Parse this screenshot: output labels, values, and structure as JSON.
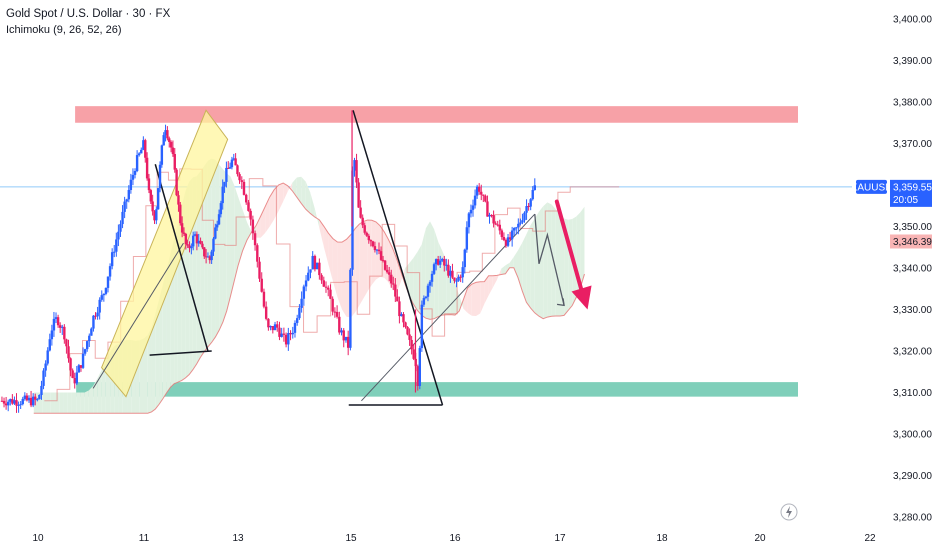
{
  "chart_data": {
    "type": "candlestick",
    "title": "Gold Spot / U.S. Dollar · 30 · FX",
    "indicator": "Ichimoku (9, 26, 52, 26)",
    "symbol": "XAUUSD",
    "y_ticks": [
      "3,400.00",
      "3,390.00",
      "3,380.00",
      "3,370.00",
      "3,360.00",
      "3,350.00",
      "3,340.00",
      "3,330.00",
      "3,320.00",
      "3,310.00",
      "3,300.00",
      "3,290.00",
      "3,280.00"
    ],
    "y_values": [
      3400,
      3390,
      3380,
      3370,
      3360,
      3350,
      3340,
      3330,
      3320,
      3310,
      3300,
      3290,
      3280
    ],
    "ylim": [
      3278,
      3404
    ],
    "x_ticks": [
      "10",
      "11",
      "13",
      "15",
      "16",
      "17",
      "18",
      "20",
      "22"
    ],
    "x_tick_pos": [
      0,
      1,
      2,
      3,
      4,
      5,
      6,
      7,
      8
    ],
    "last_price": {
      "label": "3,359.55",
      "value": 3359.55,
      "countdown": "20:05"
    },
    "kijun_price": {
      "label": "3,346.39",
      "value": 3346.39
    },
    "path": [
      [
        0,
        3308
      ],
      [
        0.06,
        3315
      ],
      [
        0.12,
        3325
      ],
      [
        0.18,
        3328
      ],
      [
        0.25,
        3324
      ],
      [
        0.33,
        3312
      ],
      [
        0.42,
        3318
      ],
      [
        0.52,
        3328
      ],
      [
        0.62,
        3334
      ],
      [
        0.72,
        3345
      ],
      [
        0.82,
        3355
      ],
      [
        0.92,
        3365
      ],
      [
        1.0,
        3370
      ],
      [
        1.06,
        3356
      ],
      [
        1.12,
        3352
      ],
      [
        1.16,
        3362
      ],
      [
        1.22,
        3375
      ],
      [
        1.3,
        3368
      ],
      [
        1.38,
        3352
      ],
      [
        1.46,
        3344
      ],
      [
        1.54,
        3348
      ],
      [
        1.62,
        3344
      ],
      [
        1.7,
        3342
      ],
      [
        1.78,
        3352
      ],
      [
        1.86,
        3362
      ],
      [
        1.94,
        3366
      ],
      [
        2.02,
        3362
      ],
      [
        2.1,
        3354
      ],
      [
        2.18,
        3340
      ],
      [
        2.26,
        3325
      ],
      [
        2.34,
        3326
      ],
      [
        2.42,
        3322
      ],
      [
        2.5,
        3326
      ],
      [
        2.58,
        3336
      ],
      [
        2.66,
        3342
      ],
      [
        2.74,
        3338
      ],
      [
        2.82,
        3332
      ],
      [
        2.9,
        3325
      ],
      [
        2.98,
        3321
      ],
      [
        3.02,
        3370
      ],
      [
        3.08,
        3352
      ],
      [
        3.16,
        3348
      ],
      [
        3.24,
        3345
      ],
      [
        3.32,
        3340
      ],
      [
        3.4,
        3336
      ],
      [
        3.48,
        3328
      ],
      [
        3.56,
        3322
      ],
      [
        3.62,
        3318
      ],
      [
        3.64,
        3312
      ],
      [
        3.68,
        3330
      ],
      [
        3.76,
        3338
      ],
      [
        3.84,
        3342
      ],
      [
        3.92,
        3340
      ],
      [
        4.0,
        3336
      ],
      [
        4.08,
        3340
      ],
      [
        4.12,
        3352
      ],
      [
        4.22,
        3360
      ],
      [
        4.3,
        3354
      ],
      [
        4.4,
        3350
      ],
      [
        4.5,
        3346
      ],
      [
        4.6,
        3350
      ],
      [
        4.7,
        3356
      ],
      [
        4.76,
        3359.55
      ]
    ],
    "annotations": {
      "resistance_zone": [
        3375,
        3379
      ],
      "support_zone": [
        3309,
        3312.5
      ],
      "rising_channel": [
        [
          0.6,
          3316
        ],
        [
          1.66,
          3378
        ],
        [
          1.89,
          3371
        ],
        [
          0.83,
          3309
        ]
      ],
      "trendlines": [
        [
          [
            0.52,
            3311
          ],
          [
            1.42,
            3346
          ]
        ],
        [
          [
            1.12,
            3365
          ],
          [
            1.68,
            3320
          ]
        ],
        [
          [
            1.06,
            3319
          ],
          [
            1.72,
            3320
          ]
        ],
        [
          [
            3.02,
            3378
          ],
          [
            3.88,
            3307
          ]
        ],
        [
          [
            2.98,
            3307
          ],
          [
            3.88,
            3307
          ]
        ],
        [
          [
            3.1,
            3308
          ],
          [
            4.76,
            3353
          ]
        ]
      ],
      "forecast_path": [
        [
          4.76,
          3353
        ],
        [
          4.8,
          3341
        ],
        [
          4.88,
          3348
        ],
        [
          5.04,
          3331
        ]
      ],
      "bearish_arrow": {
        "from": [
          4.97,
          3356
        ],
        "to": [
          5.27,
          3330
        ],
        "color": "#e91e63"
      }
    },
    "colors": {
      "bull": "#2962ff",
      "bear": "#e91e63",
      "resistance": "#f7a1a7",
      "support": "#7fcfba",
      "channel": "#fff59d",
      "cloud_bull": "#dff0e2",
      "cloud_bear": "#fde2e2",
      "kijun": "#e57373",
      "last_price_line": "#90caf9",
      "drawing": "#131722"
    }
  }
}
